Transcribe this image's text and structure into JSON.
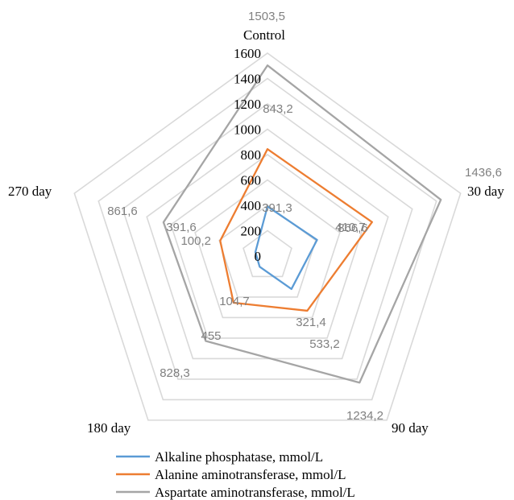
{
  "chart_data": {
    "type": "radar",
    "categories": [
      "Control",
      "30 day",
      "90 day",
      "180 day",
      "270 day"
    ],
    "axis": {
      "min": 0,
      "max": 1600,
      "ticks": [
        0,
        200,
        400,
        600,
        800,
        1000,
        1200,
        1400,
        1600
      ]
    },
    "grid": true,
    "legend_position": "bottom",
    "series": [
      {
        "name": "Alkaline phosphatase, mmol/L",
        "color": "#5B9BD5",
        "values": [
          391.3,
          410.7,
          321.4,
          104.7,
          100.2
        ],
        "labels": [
          "391,3",
          "410,7",
          "321,4",
          "104,7",
          "100,2"
        ]
      },
      {
        "name": "Alanine aminotransferase, mmol/L",
        "color": "#ED7D31",
        "values": [
          843.2,
          866.6,
          533.2,
          455,
          391.6
        ],
        "labels": [
          "843,2",
          "866,6",
          "533,2",
          "455",
          "391,6"
        ]
      },
      {
        "name": "Aspartate aminotransferase, mmol/L",
        "color": "#A5A5A5",
        "values": [
          1503.5,
          1436.6,
          1234.2,
          828.3,
          861.6
        ],
        "labels": [
          "1503,5",
          "1436,6",
          "1234,2",
          "828,3",
          "861,6"
        ]
      }
    ]
  }
}
